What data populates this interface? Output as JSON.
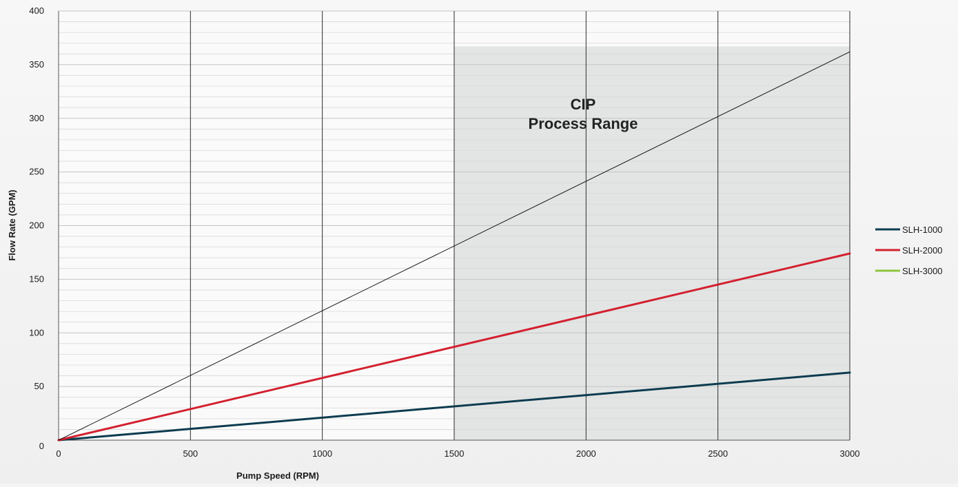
{
  "chart_data": {
    "type": "line",
    "title": "",
    "xlabel": "Pump Speed (RPM)",
    "ylabel": "Flow Rate (GPM)",
    "xlim": [
      0,
      3000
    ],
    "ylim": [
      0,
      400
    ],
    "x_ticks": [
      0,
      500,
      1000,
      1500,
      2000,
      2500,
      3000
    ],
    "y_ticks": [
      0,
      50,
      100,
      150,
      200,
      250,
      300,
      350,
      400
    ],
    "grid": true,
    "legend_position": "right",
    "annotation": {
      "text_lines": [
        "CIP",
        "Process Range"
      ],
      "x_range": [
        1500,
        3000
      ],
      "y_top": 367,
      "color": "#e3e5e5"
    },
    "series": [
      {
        "name": "SLH-1000",
        "color": "#0c3b4f",
        "x": [
          0,
          3000
        ],
        "y": [
          0,
          63
        ]
      },
      {
        "name": "SLH-2000",
        "color": "#d3202f",
        "x": [
          0,
          3000
        ],
        "y": [
          0,
          174
        ]
      },
      {
        "name": "SLH-3000",
        "color": "#8dc63f",
        "x": [
          0,
          3000
        ],
        "y": [
          0,
          362
        ],
        "drawn_color": "#111111"
      }
    ]
  }
}
